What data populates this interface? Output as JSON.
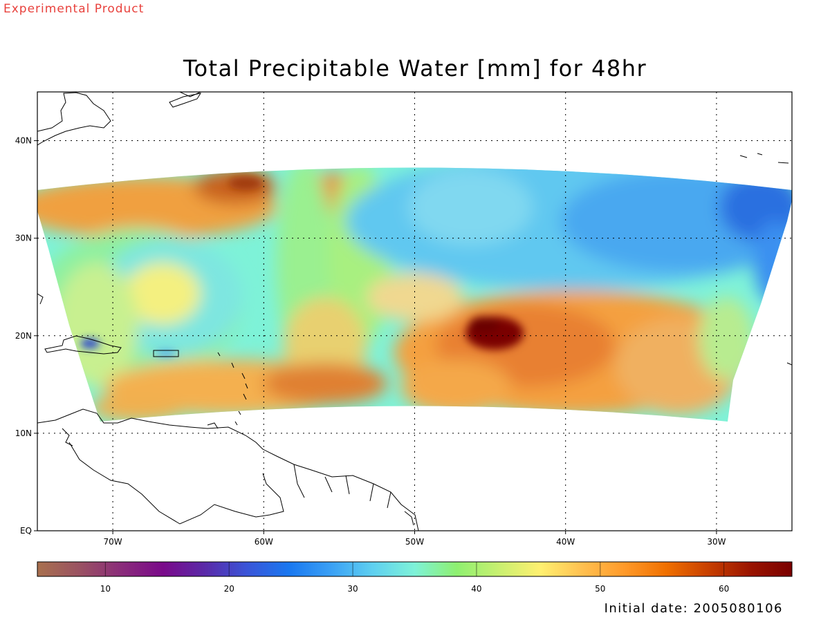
{
  "experimental_label": "Experimental Product",
  "title": "Total Precipitable Water [mm] for 48hr",
  "initial_date": "Initial date: 2005080106",
  "map": {
    "lon_range": [
      -75,
      -25
    ],
    "lat_range": [
      0,
      45
    ],
    "lat_ticks": [
      {
        "value": 0,
        "label": "EQ"
      },
      {
        "value": 10,
        "label": "10N"
      },
      {
        "value": 20,
        "label": "20N"
      },
      {
        "value": 30,
        "label": "30N"
      },
      {
        "value": 40,
        "label": "40N"
      }
    ],
    "lon_ticks": [
      {
        "value": -70,
        "label": "70W"
      },
      {
        "value": -60,
        "label": "60W"
      },
      {
        "value": -50,
        "label": "50W"
      },
      {
        "value": -40,
        "label": "40W"
      },
      {
        "value": -30,
        "label": "30W"
      }
    ],
    "grid": "dotted",
    "colorbar": {
      "range": [
        4.5,
        65.5
      ],
      "ticks": [
        10,
        20,
        30,
        40,
        50,
        60
      ],
      "colors": [
        "#a8704e",
        "#9a5262",
        "#8a2c7a",
        "#7a0a8a",
        "#5a2aa8",
        "#3a55d8",
        "#1a78f0",
        "#3aa0f5",
        "#5fd0f0",
        "#7ef2d8",
        "#8ef070",
        "#c8f070",
        "#fff070",
        "#ffc050",
        "#ff9a2a",
        "#f07000",
        "#c84000",
        "#9a1400",
        "#7a0000"
      ]
    },
    "field_features": [
      {
        "name": "tropical-cyclone",
        "lon": -45,
        "lat": 19.8,
        "value": 65
      },
      {
        "name": "anticyclone-low-moisture",
        "lon": -66.5,
        "lat": 23,
        "value": 46
      },
      {
        "name": "dry-northeast-region",
        "lon": -30,
        "lat": 33,
        "value": 27
      },
      {
        "name": "dry-patch-hispaniola",
        "lon": -71,
        "lat": 19.3,
        "value": 26
      }
    ]
  }
}
